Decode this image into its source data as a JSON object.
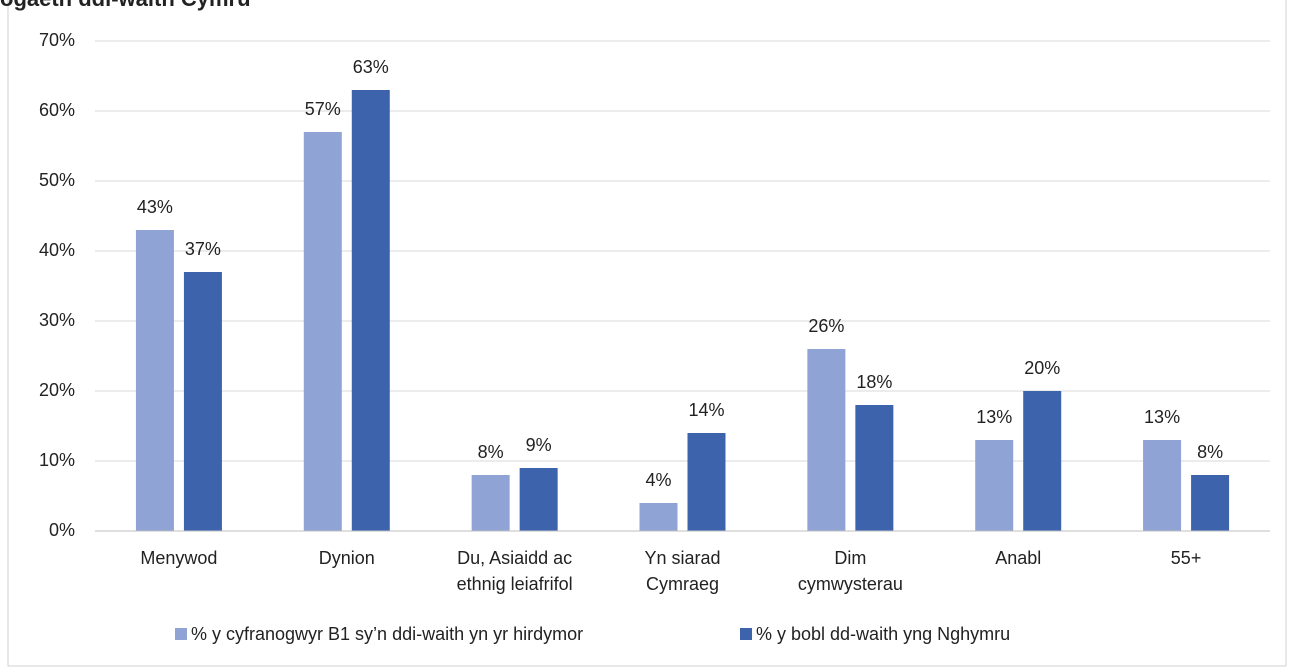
{
  "chart_data": {
    "type": "bar",
    "title": "ogaeth ddi-waith Cymru",
    "categories": [
      [
        "Menywod"
      ],
      [
        "Dynion"
      ],
      [
        "Du, Asiaidd ac",
        "ethnig leiafrifol"
      ],
      [
        "Yn siarad",
        "Cymraeg"
      ],
      [
        "Dim",
        "cymwysterau"
      ],
      [
        "Anabl"
      ],
      [
        "55+"
      ]
    ],
    "series": [
      {
        "name": "% y cyfranogwyr B1 sy’n ddi-waith yn yr hirdymor",
        "color": "#8fa3d4",
        "values": [
          43,
          57,
          8,
          4,
          26,
          13,
          13
        ],
        "value_labels": [
          "43%",
          "57%",
          "8%",
          "4%",
          "26%",
          "13%",
          "13%"
        ]
      },
      {
        "name": "% y bobl dd-waith yng Nghymru",
        "color": "#3c63ac",
        "values": [
          37,
          63,
          9,
          14,
          18,
          20,
          8
        ],
        "value_labels": [
          "37%",
          "63%",
          "9%",
          "14%",
          "18%",
          "20%",
          "8%"
        ]
      }
    ],
    "ylim": [
      0,
      70
    ],
    "yticks": [
      {
        "value": 0,
        "label": "0%"
      },
      {
        "value": 10,
        "label": "10%"
      },
      {
        "value": 20,
        "label": "20%"
      },
      {
        "value": 30,
        "label": "30%"
      },
      {
        "value": 40,
        "label": "40%"
      },
      {
        "value": 50,
        "label": "50%"
      },
      {
        "value": 60,
        "label": "60%"
      },
      {
        "value": 70,
        "label": "70%"
      }
    ],
    "grid": true
  }
}
